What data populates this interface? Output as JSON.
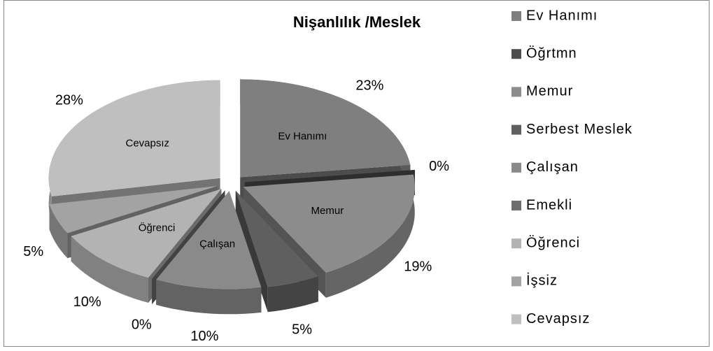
{
  "chart_data": {
    "type": "pie",
    "title": "Nişanlılık /Meslek",
    "categories": [
      "Ev Hanımı",
      "Öğrtmn",
      "Memur",
      "Serbest Meslek",
      "Çalışan",
      "Emekli",
      "Öğrenci",
      "İşsiz",
      "Cevapsız"
    ],
    "values": [
      23,
      0,
      19,
      5,
      10,
      0,
      10,
      5,
      28
    ],
    "value_labels": [
      "23%",
      "0%",
      "19%",
      "5%",
      "10%",
      "0%",
      "10%",
      "5%",
      "28%"
    ],
    "colors": [
      "#7f7f7f",
      "#4d4d4d",
      "#8c8c8c",
      "#5f5f5f",
      "#8a8a8a",
      "#6e6e6e",
      "#b3b3b3",
      "#a3a3a3",
      "#bfbfbf"
    ],
    "legend": "right"
  }
}
